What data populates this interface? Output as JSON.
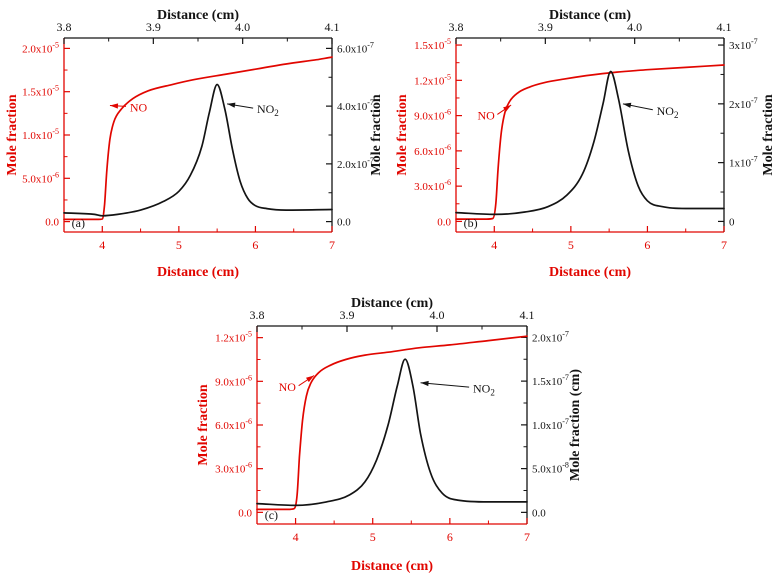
{
  "figure": {
    "background": "#ffffff"
  },
  "colors": {
    "no_series": "#e10600",
    "no2_series": "#141414"
  },
  "chart_data": [
    {
      "type": "line",
      "panel_label": "(a)",
      "panel_label_at": [
        3.6,
        -6.2e-07
      ],
      "title_top": "Distance (cm)",
      "xlabel": "Distance (cm)",
      "ylabel_left": "Mole fraction",
      "ylabel_right": "Mole fraction",
      "x_bottom": {
        "range": [
          3.5,
          7
        ],
        "ticks": [
          4,
          5,
          6,
          7
        ],
        "tick_labels": [
          "4",
          "5",
          "6",
          "7"
        ]
      },
      "x_top": {
        "range": [
          3.8,
          4.1
        ],
        "ticks": [
          3.8,
          3.9,
          4.0,
          4.1
        ],
        "tick_labels": [
          "3.8",
          "3.9",
          "4.0",
          "4.1"
        ]
      },
      "y_left": {
        "range": [
          -1.2e-06,
          2.12e-05
        ],
        "ticks": [
          0,
          5e-06,
          1e-05,
          1.5e-05,
          2e-05
        ],
        "tick_labels": [
          "0.0",
          "5.0x10^-6",
          "1.0x10^-5",
          "1.5x10^-5",
          "2.0x10^-5"
        ]
      },
      "y_right": {
        "range": [
          -3.6e-08,
          6.36e-07
        ],
        "ticks": [
          0,
          2e-07,
          4e-07,
          6e-07
        ],
        "tick_labels": [
          "0.0",
          "2.0x10^-7",
          "4.0x10^-7",
          "6.0x10^-7"
        ]
      },
      "series": [
        {
          "name": "NO",
          "axis": "left",
          "color": "#e10600",
          "points": [
            [
              3.5,
              2.5e-07
            ],
            [
              3.8,
              2.5e-07
            ],
            [
              3.95,
              2.5e-07
            ],
            [
              4.0,
              3e-07
            ],
            [
              4.03,
              2e-06
            ],
            [
              4.06,
              6e-06
            ],
            [
              4.1,
              9.5e-06
            ],
            [
              4.15,
              1.15e-05
            ],
            [
              4.25,
              1.3e-05
            ],
            [
              4.4,
              1.42e-05
            ],
            [
              4.6,
              1.51e-05
            ],
            [
              4.9,
              1.58e-05
            ],
            [
              5.2,
              1.64e-05
            ],
            [
              5.6,
              1.7e-05
            ],
            [
              6.0,
              1.76e-05
            ],
            [
              6.4,
              1.82e-05
            ],
            [
              6.8,
              1.87e-05
            ],
            [
              7.0,
              1.9e-05
            ]
          ]
        },
        {
          "name": "NO2",
          "axis": "right",
          "color": "#141414",
          "points": [
            [
              3.5,
              3e-08
            ],
            [
              3.9,
              2.5e-08
            ],
            [
              4.0,
              2e-08
            ],
            [
              4.2,
              2.5e-08
            ],
            [
              4.5,
              4e-08
            ],
            [
              4.8,
              7e-08
            ],
            [
              5.0,
              1.05e-07
            ],
            [
              5.15,
              1.6e-07
            ],
            [
              5.3,
              2.6e-07
            ],
            [
              5.4,
              3.8e-07
            ],
            [
              5.5,
              4.75e-07
            ],
            [
              5.6,
              3.9e-07
            ],
            [
              5.7,
              2.5e-07
            ],
            [
              5.8,
              1.4e-07
            ],
            [
              5.9,
              8e-08
            ],
            [
              6.0,
              5.5e-08
            ],
            [
              6.15,
              4.5e-08
            ],
            [
              6.4,
              4e-08
            ],
            [
              7.0,
              4.2e-08
            ]
          ]
        }
      ],
      "annotations": [
        {
          "label": "NO",
          "sub": "",
          "color": "#e10600",
          "text_at": [
            4.36,
            1.32e-05
          ],
          "arrow_from": [
            4.31,
            1.33e-05
          ],
          "arrow_to": [
            4.1,
            1.34e-05
          ]
        },
        {
          "label": "NO",
          "sub": "2",
          "color": "#141414",
          "text_at": [
            6.02,
            1.3e-05
          ],
          "arrow_from": [
            5.97,
            1.31e-05
          ],
          "arrow_to": [
            5.63,
            1.36e-05
          ]
        }
      ]
    },
    {
      "type": "line",
      "panel_label": "(b)",
      "panel_label_at": [
        3.6,
        -4.8e-07
      ],
      "title_top": "Distance (cm)",
      "xlabel": "Distance (cm)",
      "ylabel_left": "Mole fraction",
      "ylabel_right": "Mole fraction",
      "x_bottom": {
        "range": [
          3.5,
          7
        ],
        "ticks": [
          4,
          5,
          6,
          7
        ],
        "tick_labels": [
          "4",
          "5",
          "6",
          "7"
        ]
      },
      "x_top": {
        "range": [
          3.8,
          4.1
        ],
        "ticks": [
          3.8,
          3.9,
          4.0,
          4.1
        ],
        "tick_labels": [
          "3.8",
          "3.9",
          "4.0",
          "4.1"
        ]
      },
      "y_left": {
        "range": [
          -9e-07,
          1.56e-05
        ],
        "ticks": [
          0,
          3e-06,
          6e-06,
          9e-06,
          1.2e-05,
          1.5e-05
        ],
        "tick_labels": [
          "0.0",
          "3.0x10^-6",
          "6.0x10^-6",
          "9.0x10^-6",
          "1.2x10^-5",
          "1.5x10^-5"
        ]
      },
      "y_right": {
        "range": [
          -1.8e-08,
          3.12e-07
        ],
        "ticks": [
          0,
          1e-07,
          2e-07,
          3e-07
        ],
        "tick_labels": [
          "0",
          "1x10^-7",
          "2x10^-7",
          "3x10^-7"
        ]
      },
      "series": [
        {
          "name": "NO",
          "axis": "left",
          "color": "#e10600",
          "points": [
            [
              3.5,
              2e-07
            ],
            [
              3.9,
              2e-07
            ],
            [
              3.98,
              2.5e-07
            ],
            [
              4.02,
              1.5e-06
            ],
            [
              4.05,
              4.5e-06
            ],
            [
              4.09,
              7.5e-06
            ],
            [
              4.14,
              9.3e-06
            ],
            [
              4.2,
              1.02e-05
            ],
            [
              4.3,
              1.09e-05
            ],
            [
              4.45,
              1.14e-05
            ],
            [
              4.65,
              1.18e-05
            ],
            [
              4.9,
              1.21e-05
            ],
            [
              5.2,
              1.24e-05
            ],
            [
              5.6,
              1.27e-05
            ],
            [
              6.0,
              1.29e-05
            ],
            [
              6.5,
              1.31e-05
            ],
            [
              7.0,
              1.33e-05
            ]
          ]
        },
        {
          "name": "NO2",
          "axis": "right",
          "color": "#141414",
          "points": [
            [
              3.5,
              1.5e-08
            ],
            [
              4.0,
              1.2e-08
            ],
            [
              4.4,
              1.6e-08
            ],
            [
              4.7,
              2.5e-08
            ],
            [
              4.95,
              4.5e-08
            ],
            [
              5.15,
              8e-08
            ],
            [
              5.3,
              1.35e-07
            ],
            [
              5.42,
              2e-07
            ],
            [
              5.52,
              2.55e-07
            ],
            [
              5.62,
              2.1e-07
            ],
            [
              5.75,
              1.2e-07
            ],
            [
              5.88,
              6e-08
            ],
            [
              6.0,
              3.5e-08
            ],
            [
              6.2,
              2.5e-08
            ],
            [
              6.5,
              2.2e-08
            ],
            [
              7.0,
              2.2e-08
            ]
          ]
        }
      ],
      "annotations": [
        {
          "label": "NO",
          "sub": "",
          "color": "#e10600",
          "text_at": [
            3.78,
            9e-06
          ],
          "arrow_from": [
            4.04,
            9.1e-06
          ],
          "arrow_to": [
            4.22,
            9.9e-06
          ]
        },
        {
          "label": "NO",
          "sub": "2",
          "color": "#141414",
          "text_at": [
            6.12,
            9.4e-06
          ],
          "arrow_from": [
            6.07,
            9.5e-06
          ],
          "arrow_to": [
            5.68,
            1e-05
          ]
        }
      ]
    },
    {
      "type": "line",
      "panel_label": "(c)",
      "panel_label_at": [
        3.6,
        -4.5e-07
      ],
      "title_top": "Distance (cm)",
      "xlabel": "Distance (cm)",
      "ylabel_left": "Mole fraction",
      "ylabel_right": "Mole fraction (cm)",
      "x_bottom": {
        "range": [
          3.5,
          7
        ],
        "ticks": [
          4,
          5,
          6,
          7
        ],
        "tick_labels": [
          "4",
          "5",
          "6",
          "7"
        ]
      },
      "x_top": {
        "range": [
          3.8,
          4.1
        ],
        "ticks": [
          3.8,
          3.9,
          4.0,
          4.1
        ],
        "tick_labels": [
          "3.8",
          "3.9",
          "4.0",
          "4.1"
        ]
      },
      "y_left": {
        "range": [
          -8e-07,
          1.28e-05
        ],
        "ticks": [
          0,
          3e-06,
          6e-06,
          9e-06,
          1.2e-05
        ],
        "tick_labels": [
          "0.0",
          "3.0x10^-6",
          "6.0x10^-6",
          "9.0x10^-6",
          "1.2x10^-5"
        ]
      },
      "y_right": {
        "range": [
          -1.33e-08,
          2.13e-07
        ],
        "ticks": [
          0,
          5e-08,
          1e-07,
          1.5e-07,
          2e-07
        ],
        "tick_labels": [
          "0.0",
          "5.0x10^-8",
          "1.0x10^-7",
          "1.5x10^-7",
          "2.0x10^-7"
        ]
      },
      "series": [
        {
          "name": "NO",
          "axis": "left",
          "color": "#e10600",
          "points": [
            [
              3.5,
              2e-07
            ],
            [
              3.9,
              2e-07
            ],
            [
              3.98,
              2.5e-07
            ],
            [
              4.02,
              1.2e-06
            ],
            [
              4.05,
              3.8e-06
            ],
            [
              4.09,
              6.3e-06
            ],
            [
              4.14,
              8e-06
            ],
            [
              4.2,
              8.9e-06
            ],
            [
              4.3,
              9.6e-06
            ],
            [
              4.45,
              1.01e-05
            ],
            [
              4.65,
              1.05e-05
            ],
            [
              4.9,
              1.08e-05
            ],
            [
              5.2,
              1.1e-05
            ],
            [
              5.6,
              1.13e-05
            ],
            [
              6.0,
              1.15e-05
            ],
            [
              6.5,
              1.18e-05
            ],
            [
              7.0,
              1.21e-05
            ]
          ]
        },
        {
          "name": "NO2",
          "axis": "right",
          "color": "#141414",
          "points": [
            [
              3.5,
              1e-08
            ],
            [
              4.0,
              8e-09
            ],
            [
              4.4,
              1.2e-08
            ],
            [
              4.7,
              2e-08
            ],
            [
              4.9,
              3.5e-08
            ],
            [
              5.05,
              6e-08
            ],
            [
              5.2,
              1e-07
            ],
            [
              5.32,
              1.45e-07
            ],
            [
              5.42,
              1.75e-07
            ],
            [
              5.52,
              1.45e-07
            ],
            [
              5.62,
              9e-08
            ],
            [
              5.75,
              4.5e-08
            ],
            [
              5.9,
              2.2e-08
            ],
            [
              6.1,
              1.4e-08
            ],
            [
              6.5,
              1.2e-08
            ],
            [
              7.0,
              1.2e-08
            ]
          ]
        }
      ],
      "annotations": [
        {
          "label": "NO",
          "sub": "",
          "color": "#e10600",
          "text_at": [
            3.78,
            8.6e-06
          ],
          "arrow_from": [
            4.04,
            8.7e-06
          ],
          "arrow_to": [
            4.24,
            9.4e-06
          ]
        },
        {
          "label": "NO",
          "sub": "2",
          "color": "#141414",
          "text_at": [
            6.3,
            8.5e-06
          ],
          "arrow_from": [
            6.25,
            8.6e-06
          ],
          "arrow_to": [
            5.62,
            8.9e-06
          ]
        }
      ]
    }
  ]
}
